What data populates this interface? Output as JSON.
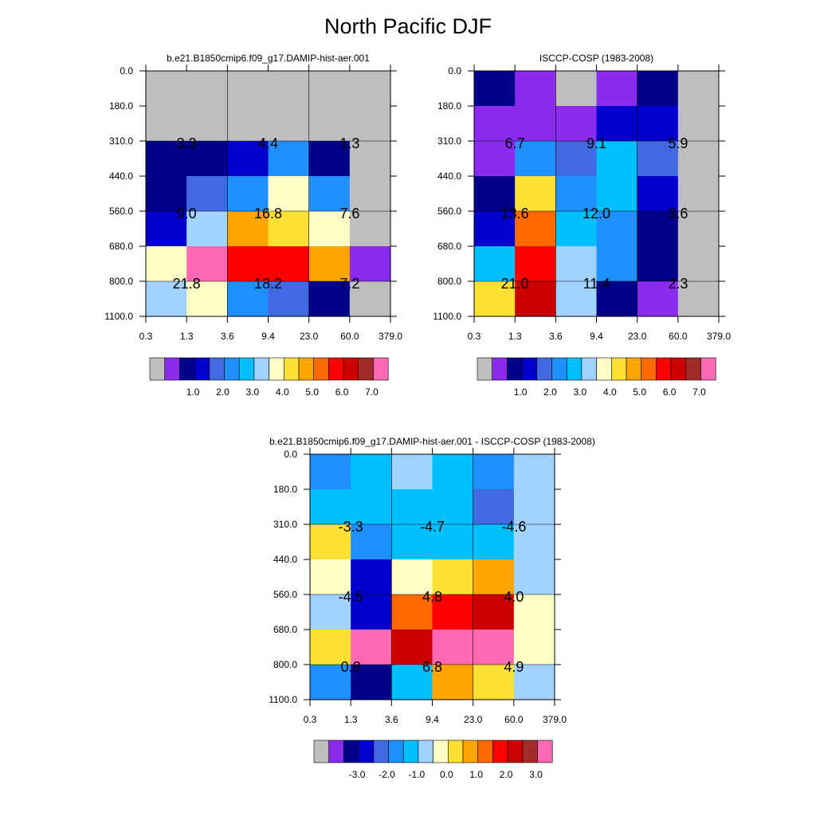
{
  "page": {
    "title": "North Pacific DJF"
  },
  "palette": {
    "missing": "#BEBEBE",
    "abs_colors": [
      "#8B2BF0",
      "#00008B",
      "#0000CD",
      "#4169E1",
      "#1E90FF",
      "#00BFFF",
      "#A2D2FF",
      "#FFFFC8",
      "#FFE135",
      "#FFA500",
      "#FF6A00",
      "#FF0000",
      "#CD0000",
      "#A52A2A",
      "#FF69B4"
    ],
    "diff_colors": [
      "#8B2BF0",
      "#00008B",
      "#0000CD",
      "#4169E1",
      "#1E90FF",
      "#00BFFF",
      "#A2D2FF",
      "#FFFFC8",
      "#FFE135",
      "#FFA500",
      "#FF6A00",
      "#FF0000",
      "#CD0000",
      "#A52A2A",
      "#FF69B4"
    ]
  },
  "chart_data": [
    {
      "type": "heatmap",
      "title": "b.e21.B1850cmip6.f09_g17.DAMIP-hist-aer.001",
      "x_ticks": [
        "0.3",
        "1.3",
        "3.6",
        "9.4",
        "23.0",
        "60.0",
        "379.0"
      ],
      "y_ticks": [
        "0.0",
        "180.0",
        "310.0",
        "440.0",
        "560.0",
        "680.0",
        "800.0",
        "1100.0"
      ],
      "cells": [
        [
          -1,
          -1,
          -1,
          -1,
          -1,
          -1
        ],
        [
          -1,
          -1,
          -1,
          -1,
          -1,
          -1
        ],
        [
          1,
          1,
          2,
          4,
          1,
          -1
        ],
        [
          1,
          3,
          4,
          7,
          4,
          -1
        ],
        [
          2,
          6,
          9,
          8,
          7,
          -1
        ],
        [
          7,
          14,
          11,
          11,
          9,
          0
        ],
        [
          6,
          7,
          4,
          3,
          1,
          -1
        ]
      ],
      "annotations": [
        {
          "col": 1,
          "row": 2,
          "text": "3.3"
        },
        {
          "col": 3,
          "row": 2,
          "text": "4.4"
        },
        {
          "col": 5,
          "row": 2,
          "text": "1.3"
        },
        {
          "col": 1,
          "row": 4,
          "text": "9.0"
        },
        {
          "col": 3,
          "row": 4,
          "text": "16.8"
        },
        {
          "col": 5,
          "row": 4,
          "text": "7.6"
        },
        {
          "col": 1,
          "row": 6,
          "text": "21.8"
        },
        {
          "col": 3,
          "row": 6,
          "text": "18.2"
        },
        {
          "col": 5,
          "row": 6,
          "text": "7.2"
        }
      ],
      "colorbar": {
        "labels": [
          "1.0",
          "2.0",
          "3.0",
          "4.0",
          "5.0",
          "6.0",
          "7.0"
        ]
      }
    },
    {
      "type": "heatmap",
      "title": "ISCCP-COSP (1983-2008)",
      "x_ticks": [
        "0.3",
        "1.3",
        "3.6",
        "9.4",
        "23.0",
        "60.0",
        "379.0"
      ],
      "y_ticks": [
        "0.0",
        "180.0",
        "310.0",
        "440.0",
        "560.0",
        "680.0",
        "800.0",
        "1100.0"
      ],
      "cells": [
        [
          1,
          0,
          -1,
          0,
          1,
          -1
        ],
        [
          0,
          0,
          0,
          2,
          2,
          -1
        ],
        [
          0,
          4,
          3,
          5,
          3,
          -1
        ],
        [
          1,
          8,
          4,
          5,
          2,
          -1
        ],
        [
          2,
          10,
          5,
          4,
          1,
          -1
        ],
        [
          5,
          11,
          6,
          4,
          1,
          -1
        ],
        [
          8,
          12,
          6,
          1,
          0,
          -1
        ]
      ],
      "annotations": [
        {
          "col": 1,
          "row": 2,
          "text": "6.7"
        },
        {
          "col": 3,
          "row": 2,
          "text": "9.1"
        },
        {
          "col": 5,
          "row": 2,
          "text": "5.9"
        },
        {
          "col": 1,
          "row": 4,
          "text": "13.6"
        },
        {
          "col": 3,
          "row": 4,
          "text": "12.0"
        },
        {
          "col": 5,
          "row": 4,
          "text": "3.6"
        },
        {
          "col": 1,
          "row": 6,
          "text": "21.0"
        },
        {
          "col": 3,
          "row": 6,
          "text": "11.4"
        },
        {
          "col": 5,
          "row": 6,
          "text": "2.3"
        }
      ],
      "colorbar": {
        "labels": [
          "1.0",
          "2.0",
          "3.0",
          "4.0",
          "5.0",
          "6.0",
          "7.0"
        ]
      }
    },
    {
      "type": "heatmap",
      "title": "b.e21.B1850cmip6.f09_g17.DAMIP-hist-aer.001 - ISCCP-COSP (1983-2008)",
      "x_ticks": [
        "0.3",
        "1.3",
        "3.6",
        "9.4",
        "23.0",
        "60.0",
        "379.0"
      ],
      "y_ticks": [
        "0.0",
        "180.0",
        "310.0",
        "440.0",
        "560.0",
        "680.0",
        "800.0",
        "1100.0"
      ],
      "cells": [
        [
          4,
          5,
          6,
          5,
          4,
          6
        ],
        [
          5,
          5,
          5,
          5,
          3,
          6
        ],
        [
          8,
          4,
          5,
          5,
          5,
          6
        ],
        [
          7,
          2,
          7,
          8,
          9,
          6
        ],
        [
          6,
          2,
          10,
          11,
          12,
          7
        ],
        [
          8,
          14,
          12,
          14,
          14,
          7
        ],
        [
          4,
          1,
          5,
          9,
          8,
          6
        ]
      ],
      "annotations": [
        {
          "col": 1,
          "row": 2,
          "text": "-3.3"
        },
        {
          "col": 3,
          "row": 2,
          "text": "-4.7"
        },
        {
          "col": 5,
          "row": 2,
          "text": "-4.6"
        },
        {
          "col": 1,
          "row": 4,
          "text": "-4.5"
        },
        {
          "col": 3,
          "row": 4,
          "text": "4.8"
        },
        {
          "col": 5,
          "row": 4,
          "text": "4.0"
        },
        {
          "col": 1,
          "row": 6,
          "text": "0.8"
        },
        {
          "col": 3,
          "row": 6,
          "text": "6.8"
        },
        {
          "col": 5,
          "row": 6,
          "text": "4.9"
        }
      ],
      "colorbar": {
        "labels": [
          "-3.0",
          "-2.0",
          "-1.0",
          "0.0",
          "1.0",
          "2.0",
          "3.0"
        ]
      }
    }
  ]
}
